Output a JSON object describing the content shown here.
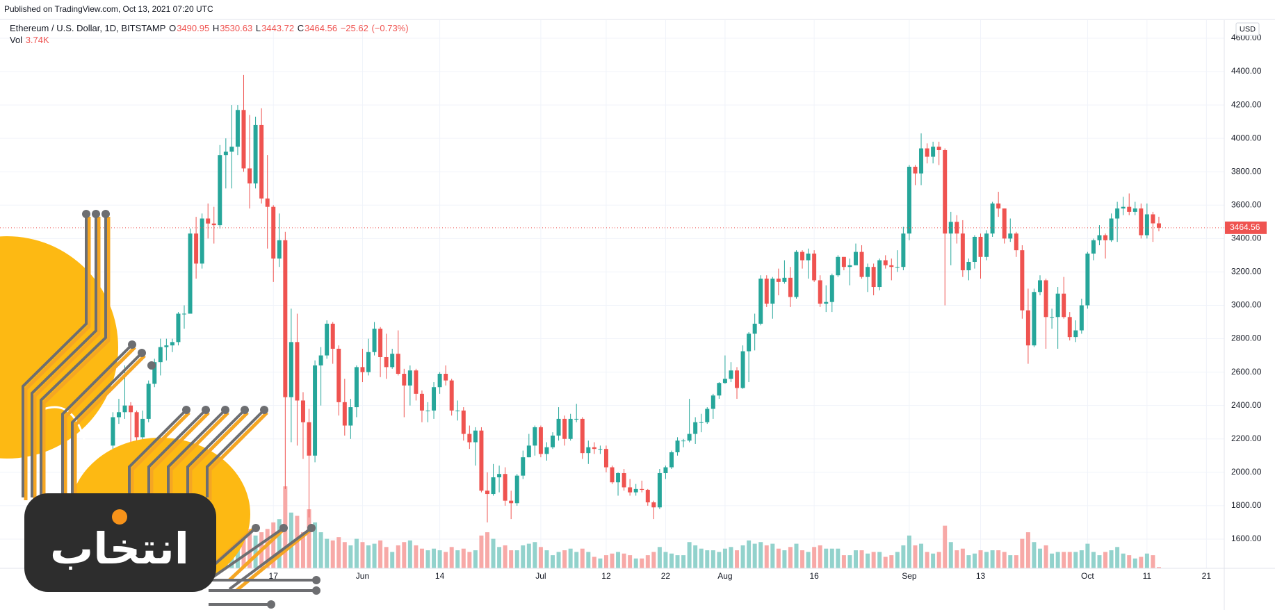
{
  "published": "Published on TradingView.com, Oct 13, 2021 07:20 UTC",
  "watermark": "انتخاب",
  "chart_data": {
    "type": "candlestick",
    "currency": "USD",
    "legend": {
      "symbol": "Ethereum / U.S. Dollar, 1D, BITSTAMP",
      "o": "O",
      "h": "H",
      "l": "L",
      "c": "C",
      "vol": "Vol",
      "open": 3490.95,
      "high": 3530.63,
      "low": 3443.72,
      "close": 3464.56,
      "change": -25.62,
      "change_label": "−25.62",
      "change_pct": -0.73,
      "change_pct_label": "(−0.73%)",
      "volume": 3740,
      "volume_label": "3.74K"
    },
    "up_color": "#26a69a",
    "down_color": "#ef5350",
    "volume_up_color": "#92d2cc",
    "volume_down_color": "#f7a9a7",
    "grid": true,
    "xlim": [
      "2021-04-01",
      "2021-10-24"
    ],
    "xticks": [
      {
        "value": "2021-05-17",
        "label": "17"
      },
      {
        "value": "2021-06-01",
        "label": "Jun"
      },
      {
        "value": "2021-06-14",
        "label": "14"
      },
      {
        "value": "2021-07-01",
        "label": "Jul"
      },
      {
        "value": "2021-07-12",
        "label": "12"
      },
      {
        "value": "2021-07-22",
        "label": "22"
      },
      {
        "value": "2021-08-01",
        "label": "Aug"
      },
      {
        "value": "2021-08-16",
        "label": "16"
      },
      {
        "value": "2021-09-01",
        "label": "Sep"
      },
      {
        "value": "2021-09-13",
        "label": "13"
      },
      {
        "value": "2021-10-01",
        "label": "Oct"
      },
      {
        "value": "2021-10-11",
        "label": "11"
      },
      {
        "value": "2021-10-21",
        "label": "21"
      }
    ],
    "ylim": [
      1425,
      4708
    ],
    "yticks": [
      {
        "value": 1600,
        "label": "1600.00"
      },
      {
        "value": 1800,
        "label": "1800.00"
      },
      {
        "value": 2000,
        "label": "2000.00"
      },
      {
        "value": 2200,
        "label": "2200.00"
      },
      {
        "value": 2400,
        "label": "2400.00"
      },
      {
        "value": 2600,
        "label": "2600.00"
      },
      {
        "value": 2800,
        "label": "2800.00"
      },
      {
        "value": 3000,
        "label": "3000.00"
      },
      {
        "value": 3200,
        "label": "3200.00"
      },
      {
        "value": 3400,
        "label": "3400.00"
      },
      {
        "value": 3600,
        "label": "3600.00"
      },
      {
        "value": 3800,
        "label": "3800.00"
      },
      {
        "value": 4000,
        "label": "4000.00"
      },
      {
        "value": 4200,
        "label": "4200.00"
      },
      {
        "value": 4400,
        "label": "4400.00"
      },
      {
        "value": 4600,
        "label": "4600.00"
      }
    ],
    "x": [
      "2021-04-20",
      "2021-04-21",
      "2021-04-22",
      "2021-04-23",
      "2021-04-24",
      "2021-04-25",
      "2021-04-26",
      "2021-04-27",
      "2021-04-28",
      "2021-04-29",
      "2021-04-30",
      "2021-05-01",
      "2021-05-02",
      "2021-05-03",
      "2021-05-04",
      "2021-05-05",
      "2021-05-06",
      "2021-05-07",
      "2021-05-08",
      "2021-05-09",
      "2021-05-10",
      "2021-05-11",
      "2021-05-12",
      "2021-05-13",
      "2021-05-14",
      "2021-05-15",
      "2021-05-16",
      "2021-05-17",
      "2021-05-18",
      "2021-05-19",
      "2021-05-20",
      "2021-05-21",
      "2021-05-22",
      "2021-05-23",
      "2021-05-24",
      "2021-05-25",
      "2021-05-26",
      "2021-05-27",
      "2021-05-28",
      "2021-05-29",
      "2021-05-30",
      "2021-05-31",
      "2021-06-01",
      "2021-06-02",
      "2021-06-03",
      "2021-06-04",
      "2021-06-05",
      "2021-06-06",
      "2021-06-07",
      "2021-06-08",
      "2021-06-09",
      "2021-06-10",
      "2021-06-11",
      "2021-06-12",
      "2021-06-13",
      "2021-06-14",
      "2021-06-15",
      "2021-06-16",
      "2021-06-17",
      "2021-06-18",
      "2021-06-19",
      "2021-06-20",
      "2021-06-21",
      "2021-06-22",
      "2021-06-23",
      "2021-06-24",
      "2021-06-25",
      "2021-06-26",
      "2021-06-27",
      "2021-06-28",
      "2021-06-29",
      "2021-06-30",
      "2021-07-01",
      "2021-07-02",
      "2021-07-03",
      "2021-07-04",
      "2021-07-05",
      "2021-07-06",
      "2021-07-07",
      "2021-07-08",
      "2021-07-09",
      "2021-07-10",
      "2021-07-11",
      "2021-07-12",
      "2021-07-13",
      "2021-07-14",
      "2021-07-15",
      "2021-07-16",
      "2021-07-17",
      "2021-07-18",
      "2021-07-19",
      "2021-07-20",
      "2021-07-21",
      "2021-07-22",
      "2021-07-23",
      "2021-07-24",
      "2021-07-25",
      "2021-07-26",
      "2021-07-27",
      "2021-07-28",
      "2021-07-29",
      "2021-07-30",
      "2021-07-31",
      "2021-08-01",
      "2021-08-02",
      "2021-08-03",
      "2021-08-04",
      "2021-08-05",
      "2021-08-06",
      "2021-08-07",
      "2021-08-08",
      "2021-08-09",
      "2021-08-10",
      "2021-08-11",
      "2021-08-12",
      "2021-08-13",
      "2021-08-14",
      "2021-08-15",
      "2021-08-16",
      "2021-08-17",
      "2021-08-18",
      "2021-08-19",
      "2021-08-20",
      "2021-08-21",
      "2021-08-22",
      "2021-08-23",
      "2021-08-24",
      "2021-08-25",
      "2021-08-26",
      "2021-08-27",
      "2021-08-28",
      "2021-08-29",
      "2021-08-30",
      "2021-08-31",
      "2021-09-01",
      "2021-09-02",
      "2021-09-03",
      "2021-09-04",
      "2021-09-05",
      "2021-09-06",
      "2021-09-07",
      "2021-09-08",
      "2021-09-09",
      "2021-09-10",
      "2021-09-11",
      "2021-09-12",
      "2021-09-13",
      "2021-09-14",
      "2021-09-15",
      "2021-09-16",
      "2021-09-17",
      "2021-09-18",
      "2021-09-19",
      "2021-09-20",
      "2021-09-21",
      "2021-09-22",
      "2021-09-23",
      "2021-09-24",
      "2021-09-25",
      "2021-09-26",
      "2021-09-27",
      "2021-09-28",
      "2021-09-29",
      "2021-09-30",
      "2021-10-01",
      "2021-10-02",
      "2021-10-03",
      "2021-10-04",
      "2021-10-05",
      "2021-10-06",
      "2021-10-07",
      "2021-10-08",
      "2021-10-09",
      "2021-10-10",
      "2021-10-11",
      "2021-10-12",
      "2021-10-13"
    ],
    "open": [
      2160,
      2330,
      2360,
      2400,
      2360,
      2210,
      2320,
      2530,
      2660,
      2750,
      2760,
      2780,
      2950,
      2950,
      3430,
      3250,
      3520,
      3490,
      3480,
      3900,
      3920,
      3950,
      4170,
      3820,
      3730,
      4080,
      3640,
      3590,
      3280,
      3390,
      2450,
      2780,
      2430,
      2300,
      2100,
      2640,
      2700,
      2890,
      2740,
      2420,
      2280,
      2390,
      2630,
      2600,
      2720,
      2860,
      2690,
      2630,
      2710,
      2590,
      2520,
      2610,
      2470,
      2370,
      2370,
      2510,
      2590,
      2550,
      2370,
      2370,
      2230,
      2180,
      2250,
      1890,
      1870,
      1970,
      1990,
      1830,
      1815,
      1980,
      2090,
      2160,
      2270,
      2110,
      2150,
      2220,
      2320,
      2200,
      2320,
      2320,
      2115,
      2150,
      2140,
      2140,
      2030,
      1940,
      1995,
      1910,
      1880,
      1900,
      1895,
      1820,
      1790,
      1995,
      2030,
      2120,
      2190,
      2190,
      2230,
      2300,
      2300,
      2380,
      2460,
      2535,
      2560,
      2610,
      2505,
      2725,
      2830,
      2890,
      3160,
      3010,
      3160,
      3140,
      3165,
      3050,
      3320,
      3270,
      3310,
      3150,
      3010,
      3020,
      3180,
      3290,
      3230,
      3240,
      3320,
      3170,
      3230,
      3110,
      3270,
      3240,
      3230,
      3230,
      3430,
      3830,
      3790,
      3940,
      3890,
      3950,
      3930,
      3430,
      3500,
      3430,
      3210,
      3260,
      3410,
      3290,
      3430,
      3610,
      3580,
      3400,
      3430,
      3330,
      2970,
      2760,
      3080,
      3150,
      2930,
      2930,
      3070,
      2930,
      2810,
      2850,
      3000,
      3310,
      3390,
      3420,
      3390,
      3520,
      3580,
      3590,
      3560,
      3580,
      3420,
      3545,
      3490.95
    ],
    "high": [
      2360,
      2440,
      2640,
      2420,
      2370,
      2370,
      2550,
      2680,
      2800,
      2800,
      2800,
      2960,
      3000,
      3460,
      3530,
      3550,
      3610,
      3590,
      3960,
      4000,
      4200,
      4200,
      4380,
      4140,
      4130,
      4180,
      3900,
      3600,
      3550,
      3440,
      2980,
      2950,
      2480,
      2380,
      2670,
      2750,
      2910,
      2900,
      2760,
      2560,
      2440,
      2640,
      2740,
      2800,
      2900,
      2870,
      2830,
      2740,
      2850,
      2620,
      2640,
      2620,
      2490,
      2420,
      2540,
      2600,
      2640,
      2560,
      2430,
      2390,
      2280,
      2270,
      2270,
      2000,
      2050,
      2040,
      2030,
      1890,
      1990,
      2130,
      2230,
      2280,
      2280,
      2180,
      2240,
      2390,
      2340,
      2350,
      2410,
      2330,
      2190,
      2180,
      2160,
      2160,
      2040,
      2000,
      2020,
      1960,
      1930,
      1950,
      1900,
      1830,
      2020,
      2040,
      2130,
      2210,
      2200,
      2440,
      2330,
      2350,
      2390,
      2470,
      2540,
      2700,
      2660,
      2630,
      2760,
      2840,
      2950,
      3180,
      3180,
      3170,
      3220,
      3270,
      3230,
      3330,
      3330,
      3340,
      3330,
      3180,
      3120,
      3190,
      3300,
      3290,
      3280,
      3370,
      3360,
      3250,
      3250,
      3280,
      3300,
      3280,
      3330,
      3470,
      3840,
      3840,
      4030,
      3970,
      3980,
      3980,
      3940,
      3560,
      3540,
      3510,
      3280,
      3420,
      3430,
      3450,
      3620,
      3680,
      3580,
      3520,
      3440,
      3360,
      3100,
      3100,
      3180,
      3160,
      2980,
      3110,
      3170,
      2960,
      2910,
      3040,
      3320,
      3400,
      3480,
      3430,
      3550,
      3620,
      3650,
      3670,
      3620,
      3610,
      3610,
      3560,
      3530.63
    ],
    "low": [
      2110,
      2290,
      2320,
      2140,
      2180,
      2170,
      2300,
      2510,
      2580,
      2670,
      2720,
      2760,
      2860,
      2950,
      3160,
      3220,
      3400,
      3370,
      3460,
      3700,
      3700,
      3900,
      3800,
      3580,
      3700,
      3610,
      3340,
      3140,
      3230,
      1900,
      2180,
      2160,
      2080,
      1730,
      2060,
      2400,
      2680,
      2650,
      2340,
      2220,
      2200,
      2330,
      2540,
      2580,
      2700,
      2570,
      2560,
      2620,
      2580,
      2330,
      2400,
      2430,
      2300,
      2300,
      2320,
      2470,
      2520,
      2340,
      2310,
      2190,
      2140,
      2040,
      1880,
      1700,
      1860,
      1880,
      1800,
      1720,
      1800,
      1960,
      2090,
      2100,
      2090,
      2070,
      2140,
      2190,
      2160,
      2190,
      2300,
      2080,
      2050,
      2110,
      2110,
      2000,
      1930,
      1860,
      1890,
      1860,
      1860,
      1880,
      1800,
      1720,
      1780,
      1960,
      2020,
      2100,
      2150,
      2180,
      2170,
      2240,
      2290,
      2320,
      2440,
      2530,
      2540,
      2440,
      2500,
      2540,
      2730,
      2880,
      2990,
      2920,
      3060,
      3130,
      2990,
      3040,
      3220,
      3160,
      3140,
      2990,
      2960,
      2960,
      3170,
      3210,
      3120,
      3240,
      3160,
      3080,
      3060,
      3090,
      3220,
      3150,
      3200,
      3210,
      3390,
      3720,
      3720,
      3850,
      3850,
      3840,
      3000,
      3240,
      3370,
      3170,
      3150,
      3220,
      3160,
      3270,
      3410,
      3530,
      3370,
      3380,
      3290,
      2920,
      2650,
      2750,
      3060,
      2740,
      2860,
      2740,
      2920,
      2790,
      2780,
      2830,
      2980,
      3270,
      3360,
      3280,
      3380,
      3380,
      3540,
      3540,
      3540,
      3400,
      3400,
      3380,
      3443.72
    ],
    "close": [
      2330,
      2360,
      2400,
      2360,
      2210,
      2320,
      2530,
      2660,
      2750,
      2760,
      2780,
      2950,
      2950,
      3430,
      3250,
      3520,
      3490,
      3480,
      3900,
      3920,
      3950,
      4170,
      3820,
      3730,
      4080,
      3640,
      3590,
      3280,
      3390,
      2450,
      2780,
      2430,
      2300,
      2100,
      2640,
      2700,
      2890,
      2740,
      2420,
      2280,
      2390,
      2630,
      2600,
      2720,
      2860,
      2690,
      2630,
      2710,
      2590,
      2520,
      2610,
      2470,
      2370,
      2370,
      2510,
      2590,
      2550,
      2370,
      2370,
      2230,
      2180,
      2250,
      1890,
      1870,
      1970,
      1990,
      1830,
      1815,
      1980,
      2090,
      2160,
      2270,
      2110,
      2150,
      2220,
      2320,
      2200,
      2320,
      2320,
      2115,
      2150,
      2140,
      2140,
      2030,
      1940,
      1995,
      1910,
      1880,
      1900,
      1895,
      1820,
      1790,
      1995,
      2030,
      2120,
      2190,
      2190,
      2230,
      2300,
      2300,
      2380,
      2460,
      2535,
      2560,
      2610,
      2505,
      2725,
      2830,
      2890,
      3160,
      3010,
      3160,
      3140,
      3165,
      3050,
      3320,
      3270,
      3310,
      3150,
      3010,
      3020,
      3180,
      3290,
      3230,
      3240,
      3320,
      3170,
      3230,
      3110,
      3270,
      3240,
      3230,
      3230,
      3430,
      3830,
      3790,
      3940,
      3890,
      3950,
      3930,
      3430,
      3500,
      3430,
      3210,
      3260,
      3410,
      3290,
      3430,
      3610,
      3580,
      3400,
      3430,
      3330,
      2970,
      2760,
      3080,
      3150,
      2930,
      2930,
      3070,
      2930,
      2810,
      2850,
      3000,
      3310,
      3390,
      3420,
      3390,
      3520,
      3580,
      3590,
      3560,
      3580,
      3420,
      3545,
      3490.95,
      3464.56
    ],
    "volume": [
      90000,
      80000,
      110000,
      85000,
      70000,
      60000,
      75000,
      80000,
      85000,
      70000,
      65000,
      80000,
      60000,
      110000,
      120000,
      95000,
      80000,
      75000,
      95000,
      90000,
      110000,
      100000,
      130000,
      120000,
      100000,
      110000,
      120000,
      140000,
      150000,
      250000,
      170000,
      160000,
      110000,
      180000,
      140000,
      110000,
      90000,
      85000,
      95000,
      80000,
      70000,
      90000,
      80000,
      70000,
      75000,
      85000,
      65000,
      50000,
      70000,
      80000,
      85000,
      70000,
      60000,
      55000,
      60000,
      55000,
      50000,
      65000,
      55000,
      60000,
      50000,
      55000,
      100000,
      110000,
      90000,
      65000,
      70000,
      55000,
      55000,
      70000,
      75000,
      80000,
      65000,
      55000,
      40000,
      50000,
      55000,
      60000,
      50000,
      60000,
      50000,
      35000,
      30000,
      40000,
      45000,
      50000,
      45000,
      40000,
      30000,
      30000,
      40000,
      50000,
      65000,
      50000,
      45000,
      40000,
      40000,
      80000,
      70000,
      60000,
      55000,
      55000,
      50000,
      60000,
      65000,
      55000,
      70000,
      85000,
      75000,
      80000,
      70000,
      75000,
      60000,
      55000,
      65000,
      75000,
      55000,
      50000,
      65000,
      70000,
      60000,
      60000,
      60000,
      40000,
      40000,
      55000,
      55000,
      45000,
      50000,
      50000,
      35000,
      40000,
      50000,
      70000,
      100000,
      70000,
      75000,
      50000,
      45000,
      50000,
      130000,
      80000,
      55000,
      60000,
      40000,
      45000,
      55000,
      50000,
      55000,
      55000,
      50000,
      40000,
      40000,
      90000,
      110000,
      80000,
      60000,
      70000,
      45000,
      50000,
      50000,
      50000,
      50000,
      55000,
      75000,
      50000,
      40000,
      50000,
      55000,
      65000,
      45000,
      40000,
      30000,
      35000,
      45000,
      40000,
      3740
    ]
  }
}
